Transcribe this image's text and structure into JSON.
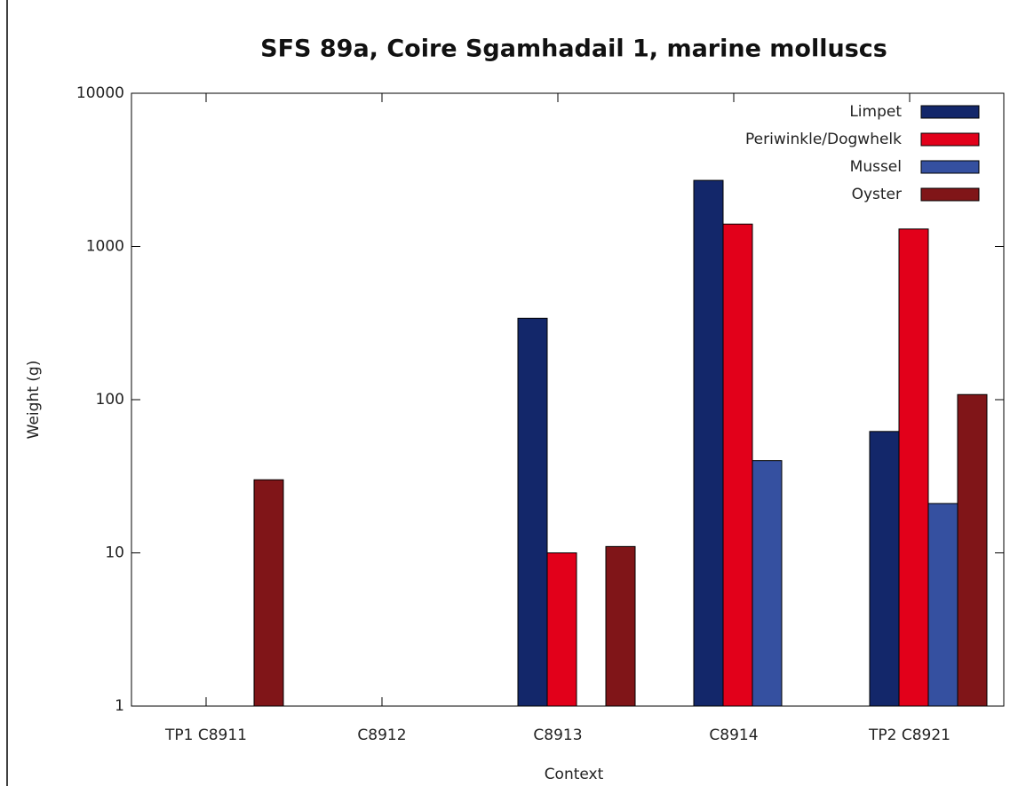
{
  "chart_data": {
    "type": "bar",
    "title": "SFS 89a, Coire Sgamhadail 1, marine molluscs",
    "xlabel": "Context",
    "ylabel": "Weight (g)",
    "categories": [
      "TP1 C8911",
      "C8912",
      "C8913",
      "C8914",
      "TP2 C8921"
    ],
    "series": [
      {
        "name": "Limpet",
        "color": "#13276a",
        "values": [
          null,
          null,
          340,
          2700,
          62
        ]
      },
      {
        "name": "Periwinkle/Dogwhelk",
        "color": "#e2001a",
        "values": [
          null,
          null,
          10,
          1400,
          1300
        ]
      },
      {
        "name": "Mussel",
        "color": "#3550a0",
        "values": [
          null,
          null,
          null,
          40,
          21
        ]
      },
      {
        "name": "Oyster",
        "color": "#801518",
        "values": [
          30,
          null,
          11,
          null,
          108
        ]
      }
    ],
    "ylim": [
      1,
      10000
    ],
    "yticks": [
      1,
      10,
      100,
      1000,
      10000
    ],
    "log_y": true,
    "legend": "top-right"
  }
}
